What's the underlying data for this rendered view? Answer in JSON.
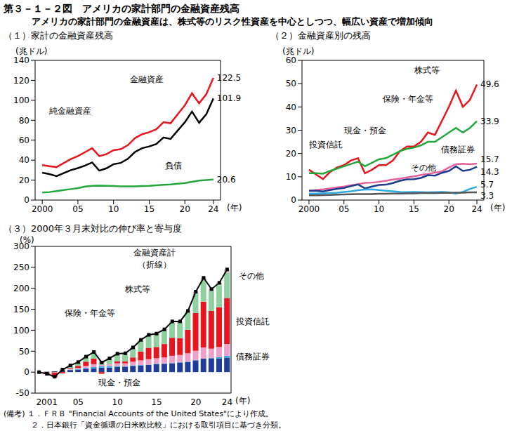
{
  "title": "第３－１－２図　アメリカの家計部門の金融資産残高",
  "subtitle": "アメリカの家計部門の金融資産は、株式等のリスク性資産を中心としつつ、幅広い資産で増加傾向",
  "notes_label": "(備考)",
  "notes": [
    "１．ＦＲＢ \"Financial Accounts of the United States\"により作成。",
    "２．日本銀行「資金循環の日米欧比較」における取引項目に基づき分類。"
  ],
  "chart_data": [
    {
      "type": "line",
      "title": "（１）家計の金融資産残高",
      "y_label": "(兆ドル)",
      "x_label": "(年)",
      "x": [
        2000,
        2001,
        2002,
        2003,
        2004,
        2005,
        2006,
        2007,
        2008,
        2009,
        2010,
        2011,
        2012,
        2013,
        2014,
        2015,
        2016,
        2017,
        2018,
        2019,
        2020,
        2021,
        2022,
        2023,
        2024
      ],
      "xlim": [
        1999,
        2025
      ],
      "xticks": [
        2000,
        {
          "value": 2005,
          "label": "05"
        },
        {
          "value": 2010,
          "label": "10"
        },
        {
          "value": 2015,
          "label": "15"
        },
        {
          "value": 2020,
          "label": "20"
        },
        {
          "value": 2024,
          "label": "24"
        }
      ],
      "ylim": [
        0,
        140
      ],
      "yticks": [
        0,
        20,
        40,
        60,
        80,
        100,
        120,
        140
      ],
      "series": [
        {
          "name": "金融資産",
          "color": "#e8141e",
          "values": [
            35,
            34,
            33,
            37,
            41,
            44,
            48,
            52,
            44,
            46,
            50,
            51,
            55,
            62,
            66,
            68,
            71,
            78,
            77,
            86,
            95,
            107,
            97,
            106,
            122.5
          ]
        },
        {
          "name": "純金融資産",
          "color": "#000000",
          "values": [
            27.5,
            26,
            24,
            27,
            30,
            32,
            34.5,
            37.7,
            29.5,
            31.8,
            36,
            37.2,
            41.3,
            48.2,
            52,
            53.7,
            56.2,
            62.7,
            61.3,
            69.7,
            78,
            88.7,
            77.5,
            86,
            101.9
          ]
        },
        {
          "name": "負債",
          "color": "#22a83a",
          "values": [
            7.5,
            8,
            9,
            10,
            11,
            12,
            13.5,
            14.3,
            14.5,
            14.2,
            14,
            13.8,
            13.7,
            13.8,
            14,
            14.3,
            14.8,
            15.3,
            15.7,
            16.3,
            17,
            18.3,
            19.5,
            20,
            20.6
          ]
        }
      ]
    },
    {
      "type": "line",
      "title": "（２）金融資産別の残高",
      "y_label": "(兆ドル)",
      "x_label": "(年)",
      "x": [
        2000,
        2001,
        2002,
        2003,
        2004,
        2005,
        2006,
        2007,
        2008,
        2009,
        2010,
        2011,
        2012,
        2013,
        2014,
        2015,
        2016,
        2017,
        2018,
        2019,
        2020,
        2021,
        2022,
        2023,
        2024
      ],
      "xlim": [
        1999,
        2025
      ],
      "xticks": [
        2000,
        {
          "value": 2005,
          "label": "05"
        },
        {
          "value": 2010,
          "label": "10"
        },
        {
          "value": 2015,
          "label": "15"
        },
        {
          "value": 2020,
          "label": "20"
        },
        {
          "value": 2024,
          "label": "24"
        }
      ],
      "ylim": [
        0,
        60
      ],
      "yticks": [
        0,
        10,
        20,
        30,
        40,
        50,
        60
      ],
      "series": [
        {
          "name": "株式等",
          "color": "#e8141e",
          "values": [
            13,
            11,
            9,
            12,
            14,
            15,
            17,
            18,
            11.5,
            13,
            15,
            15,
            17,
            21,
            23,
            23,
            25,
            29,
            28,
            34,
            40,
            47,
            40,
            43,
            49.6
          ]
        },
        {
          "name": "保険・年金等",
          "color": "#22a83a",
          "values": [
            11.5,
            11.5,
            11.3,
            12.5,
            13.5,
            14.5,
            15.5,
            16.5,
            14.5,
            16,
            17.5,
            18,
            19.5,
            21,
            22,
            22.5,
            23.5,
            25,
            25,
            27,
            29,
            31,
            29,
            31,
            33.9
          ]
        },
        {
          "name": "現金・預金",
          "color": "#e8609a",
          "values": [
            4,
            4.3,
            4.6,
            5,
            5.4,
            5.8,
            6.3,
            6.8,
            7.4,
            7.5,
            7.8,
            8.3,
            8.8,
            9.2,
            9.7,
            10.2,
            10.8,
            11.2,
            11.8,
            12.3,
            14,
            15.4,
            15.6,
            15.4,
            15.7
          ]
        },
        {
          "name": "投資信託",
          "color": "#1a3a8f",
          "values": [
            4,
            4,
            3.7,
            4.3,
            4.8,
            5.2,
            6,
            6.7,
            5,
            5.8,
            6.5,
            6.6,
            7.3,
            8.3,
            8.9,
            9,
            9.5,
            10.7,
            10.5,
            11.7,
            12.5,
            14.5,
            12.5,
            13,
            14.3
          ]
        },
        {
          "name": "債務証券",
          "color": "#2ea8e0",
          "values": [
            2.8,
            2.8,
            2.9,
            3,
            3.2,
            3.5,
            3.8,
            4.2,
            4.5,
            4.6,
            4.3,
            4,
            3.8,
            3.5,
            3.4,
            3.5,
            3.4,
            3.3,
            3.4,
            3.5,
            3.3,
            2.8,
            3.5,
            4.8,
            5.7
          ]
        },
        {
          "name": "その他",
          "color": "#555555",
          "values": [
            2,
            2,
            2.1,
            2.2,
            2.3,
            2.4,
            2.5,
            2.6,
            2.6,
            2.6,
            2.7,
            2.7,
            2.8,
            2.8,
            2.9,
            2.9,
            3,
            3,
            3,
            3.1,
            3.1,
            3.2,
            3.2,
            3.3,
            3.3
          ]
        }
      ]
    },
    {
      "type": "bar",
      "stacked": true,
      "title": "（３）2000年３月末対比の伸び率と寄与度",
      "y_label": "(%)",
      "x_label": "(年)",
      "categories": [
        null,
        "2001",
        null,
        null,
        null,
        "05",
        null,
        null,
        null,
        null,
        "10",
        null,
        null,
        null,
        null,
        "15",
        null,
        null,
        null,
        null,
        "20",
        null,
        null,
        null,
        "24"
      ],
      "ylim": [
        -50,
        300
      ],
      "yticks": [
        -50,
        0,
        50,
        100,
        150,
        200,
        250,
        300
      ],
      "series": [
        {
          "name": "現金・預金",
          "color": "#1f3c99",
          "values": [
            0,
            1,
            2,
            4,
            5,
            6,
            8,
            9,
            11,
            11,
            12,
            13,
            15,
            16,
            17,
            19,
            20,
            21,
            23,
            24,
            28,
            32,
            33,
            33,
            34
          ]
        },
        {
          "name": "債務証券",
          "color": "#2ea8e0",
          "values": [
            0,
            0,
            0,
            0,
            1,
            1,
            2,
            3,
            3,
            3,
            2,
            1,
            1,
            1,
            1,
            1,
            1,
            1,
            1,
            1,
            1,
            0,
            1,
            3,
            5
          ]
        },
        {
          "name": "投資信託",
          "color": "#f0a0c8",
          "values": [
            0,
            0,
            -1,
            1,
            2,
            3,
            5,
            7,
            3,
            5,
            7,
            7,
            9,
            11,
            13,
            13,
            14,
            17,
            17,
            20,
            22,
            27,
            22,
            24,
            28
          ]
        },
        {
          "name": "株式等",
          "color": "#e8141e",
          "values": [
            0,
            -5,
            -11,
            -3,
            2,
            5,
            10,
            13,
            -4,
            0,
            5,
            5,
            10,
            21,
            27,
            27,
            32,
            43,
            40,
            56,
            90,
            109,
            90,
            95,
            110
          ]
        },
        {
          "name": "保険・年金等",
          "color": "#8fd19e",
          "values": [
            0,
            0,
            -1,
            3,
            5,
            8,
            11,
            14,
            8,
            12,
            16,
            17,
            21,
            25,
            28,
            29,
            32,
            36,
            36,
            41,
            47,
            52,
            47,
            52,
            60
          ]
        },
        {
          "name": "その他",
          "color": "#c8c8c8",
          "values": [
            0,
            0,
            0,
            1,
            1,
            1,
            1,
            2,
            2,
            2,
            2,
            2,
            3,
            3,
            3,
            3,
            3,
            3,
            4,
            4,
            4,
            5,
            5,
            6,
            8
          ]
        },
        {
          "name": "金融資産計（折線）",
          "type": "line",
          "color": "#000000",
          "marker": "square",
          "values": [
            0,
            -4,
            -11,
            6,
            16,
            24,
            37,
            48,
            23,
            33,
            44,
            45,
            59,
            77,
            89,
            92,
            102,
            121,
            121,
            146,
            192,
            225,
            198,
            213,
            245
          ]
        }
      ]
    }
  ]
}
